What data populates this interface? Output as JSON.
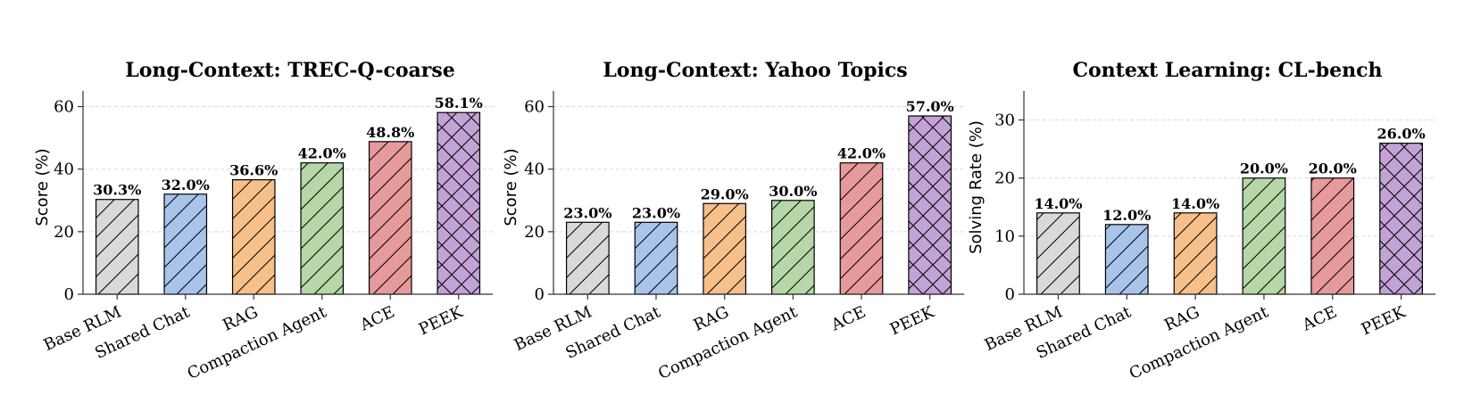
{
  "palette": {
    "Base RLM": "#d9d9d9",
    "Shared Chat": "#a9c4eb",
    "RAG": "#f7c08a",
    "Compaction Agent": "#b6d7a8",
    "ACE": "#e69a9c",
    "PEEK": "#c3a3d6"
  },
  "hatch": {
    "Base RLM": "diag",
    "Shared Chat": "diag",
    "RAG": "diag",
    "Compaction Agent": "diag",
    "ACE": "diag",
    "PEEK": "cross"
  },
  "chart_data": [
    {
      "type": "bar",
      "title": "Long-Context: TREC-Q-coarse",
      "ylabel": "Score (%)",
      "xlabel": "",
      "categories": [
        "Base RLM",
        "Shared Chat",
        "RAG",
        "Compaction Agent",
        "ACE",
        "PEEK"
      ],
      "values": [
        30.3,
        32.0,
        36.6,
        42.0,
        48.8,
        58.1
      ],
      "value_labels": [
        "30.3%",
        "32.0%",
        "36.6%",
        "42.0%",
        "48.8%",
        "58.1%"
      ],
      "ylim": [
        0,
        65
      ],
      "yticks": [
        0,
        20,
        40,
        60
      ],
      "grid": true
    },
    {
      "type": "bar",
      "title": "Long-Context: Yahoo Topics",
      "ylabel": "Score (%)",
      "xlabel": "",
      "categories": [
        "Base RLM",
        "Shared Chat",
        "RAG",
        "Compaction Agent",
        "ACE",
        "PEEK"
      ],
      "values": [
        23.0,
        23.0,
        29.0,
        30.0,
        42.0,
        57.0
      ],
      "value_labels": [
        "23.0%",
        "23.0%",
        "29.0%",
        "30.0%",
        "42.0%",
        "57.0%"
      ],
      "ylim": [
        0,
        65
      ],
      "yticks": [
        0,
        20,
        40,
        60
      ],
      "grid": true
    },
    {
      "type": "bar",
      "title": "Context Learning: CL-bench",
      "ylabel": "Solving Rate (%)",
      "xlabel": "",
      "categories": [
        "Base RLM",
        "Shared Chat",
        "RAG",
        "Compaction Agent",
        "ACE",
        "PEEK"
      ],
      "values": [
        14.0,
        12.0,
        14.0,
        20.0,
        20.0,
        26.0
      ],
      "value_labels": [
        "14.0%",
        "12.0%",
        "14.0%",
        "20.0%",
        "20.0%",
        "26.0%"
      ],
      "ylim": [
        0,
        35
      ],
      "yticks": [
        0,
        10,
        20,
        30
      ],
      "grid": true
    }
  ]
}
